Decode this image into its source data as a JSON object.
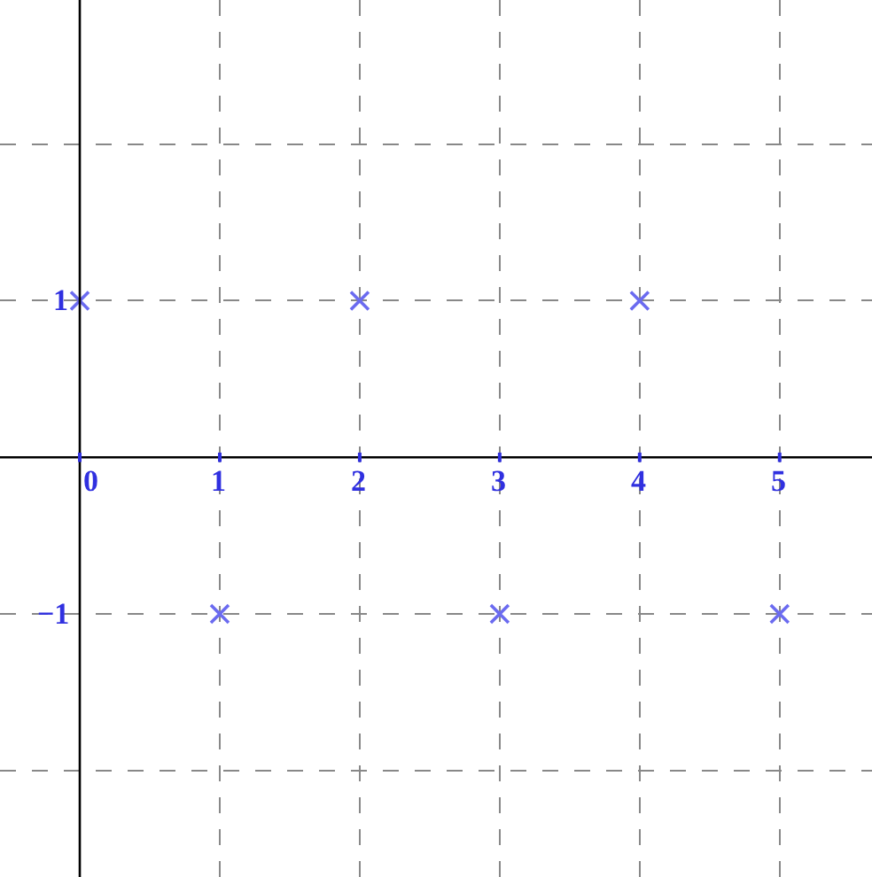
{
  "chart_data": {
    "type": "scatter",
    "x": [
      0,
      1,
      2,
      3,
      4,
      5
    ],
    "series": [
      {
        "color": "#6b6bf0",
        "values": [
          1,
          -1,
          1,
          -1,
          1,
          -1
        ]
      }
    ],
    "xlim": [
      -0.57,
      5.66
    ],
    "ylim": [
      -2.68,
      2.92
    ],
    "xticks": [
      0,
      1,
      2,
      3,
      4,
      5
    ],
    "yticks": [
      {
        "value": -2,
        "label": null
      },
      {
        "value": -1,
        "label": "−1"
      },
      {
        "value": 1,
        "label": "1"
      },
      {
        "value": 2,
        "label": null
      }
    ],
    "grid": true,
    "marker": "cross"
  }
}
